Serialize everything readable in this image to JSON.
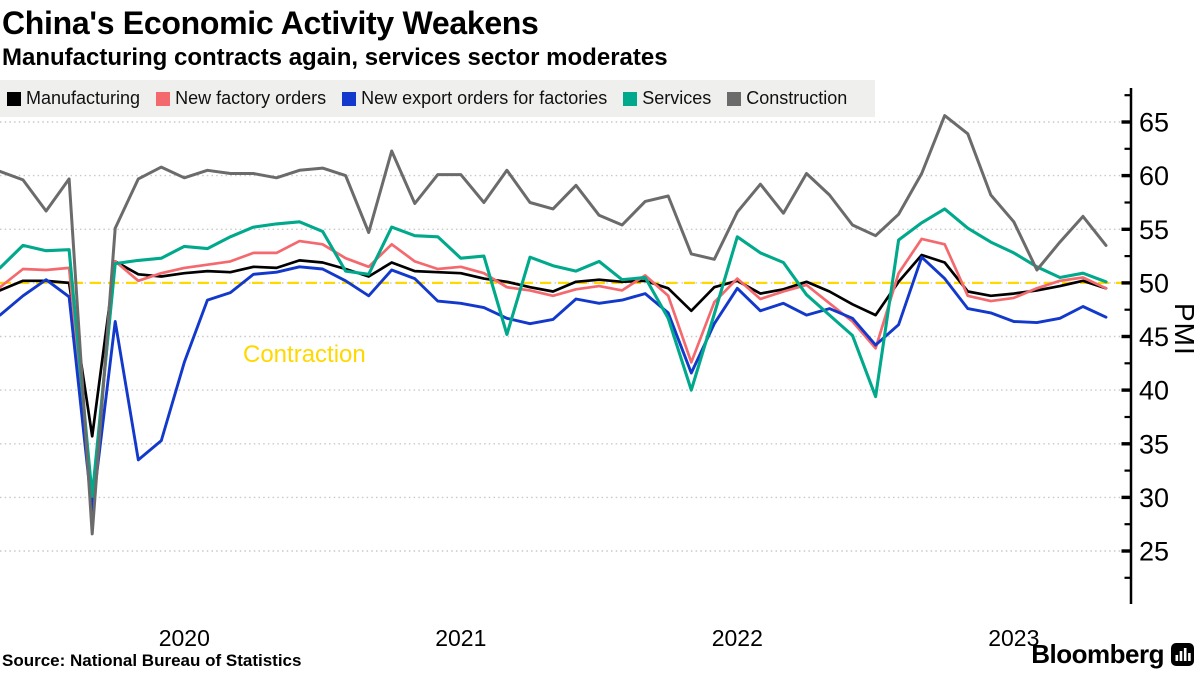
{
  "header": {
    "title": "China's Economic Activity Weakens",
    "subtitle": "Manufacturing contracts again, services sector moderates"
  },
  "chart_data": {
    "type": "line",
    "x_frequency": "monthly",
    "x_start": "Oct 2019",
    "x_end": "Oct 2023",
    "x_year_labels": [
      "2020",
      "2021",
      "2022",
      "2023"
    ],
    "ylabel": "PMI",
    "ylim": [
      22.5,
      67.5
    ],
    "yticks_major": [
      25,
      30,
      35,
      40,
      45,
      50,
      55,
      60,
      65
    ],
    "yticks_minor": [
      22.5,
      27.5,
      32.5,
      37.5,
      42.5,
      47.5,
      52.5,
      57.5,
      62.5,
      67.5
    ],
    "grid": "dotted-horizontal",
    "legend_position": "top",
    "reference_line": {
      "value": 50,
      "style": "dashed",
      "color": "#FFD800",
      "label": "Contraction",
      "label_color": "#FFD800"
    },
    "series": [
      {
        "name": "Manufacturing",
        "color": "#000000",
        "values": [
          49.3,
          50.2,
          50.2,
          50.0,
          35.7,
          52.0,
          50.8,
          50.6,
          50.9,
          51.1,
          51.0,
          51.5,
          51.4,
          52.1,
          51.9,
          51.3,
          50.6,
          51.9,
          51.1,
          51.0,
          50.9,
          50.4,
          50.1,
          49.6,
          49.2,
          50.1,
          50.3,
          50.1,
          50.2,
          49.5,
          47.4,
          49.6,
          50.2,
          49.0,
          49.4,
          50.1,
          49.2,
          48.0,
          47.0,
          50.1,
          52.6,
          51.9,
          49.2,
          48.8,
          49.0,
          49.3,
          49.7,
          50.2,
          49.5
        ]
      },
      {
        "name": "New factory orders",
        "color": "#F4696E",
        "values": [
          49.6,
          51.3,
          51.2,
          51.4,
          29.3,
          52.0,
          50.2,
          50.9,
          51.4,
          51.7,
          52.0,
          52.8,
          52.8,
          53.9,
          53.6,
          52.3,
          51.5,
          53.6,
          52.0,
          51.3,
          51.5,
          50.9,
          49.6,
          49.3,
          48.8,
          49.4,
          49.7,
          49.3,
          50.7,
          48.8,
          42.6,
          48.2,
          50.4,
          48.5,
          49.2,
          49.8,
          48.1,
          46.4,
          43.9,
          50.9,
          54.1,
          53.6,
          48.8,
          48.3,
          48.6,
          49.5,
          50.2,
          50.5,
          49.5
        ]
      },
      {
        "name": "New export orders for factories",
        "color": "#1239CB",
        "values": [
          47.0,
          48.8,
          50.3,
          48.7,
          28.7,
          46.4,
          33.5,
          35.3,
          42.6,
          48.4,
          49.1,
          50.8,
          51.0,
          51.5,
          51.3,
          50.2,
          48.8,
          51.2,
          50.4,
          48.3,
          48.1,
          47.7,
          46.7,
          46.2,
          46.6,
          48.5,
          48.1,
          48.4,
          49.0,
          47.2,
          41.6,
          46.2,
          49.5,
          47.4,
          48.1,
          47.0,
          47.6,
          46.7,
          44.2,
          46.1,
          52.4,
          50.4,
          47.6,
          47.2,
          46.4,
          46.3,
          46.7,
          47.8,
          46.8
        ]
      },
      {
        "name": "Services",
        "color": "#00A98B",
        "values": [
          51.4,
          53.5,
          53.0,
          53.1,
          30.1,
          51.8,
          52.1,
          52.3,
          53.4,
          53.2,
          54.3,
          55.2,
          55.5,
          55.7,
          54.8,
          51.1,
          50.8,
          55.2,
          54.4,
          54.3,
          52.3,
          52.5,
          45.2,
          52.4,
          51.6,
          51.1,
          52.0,
          50.3,
          50.5,
          46.7,
          40.0,
          47.1,
          54.3,
          52.8,
          51.9,
          48.9,
          47.0,
          45.1,
          39.4,
          54.0,
          55.6,
          56.9,
          55.1,
          53.8,
          52.8,
          51.5,
          50.5,
          50.9,
          50.1
        ]
      },
      {
        "name": "Construction",
        "color": "#6B6B6B",
        "values": [
          60.4,
          59.6,
          56.7,
          59.7,
          26.6,
          55.1,
          59.7,
          60.8,
          59.8,
          60.5,
          60.2,
          60.2,
          59.8,
          60.5,
          60.7,
          60.0,
          54.7,
          62.3,
          57.4,
          60.1,
          60.1,
          57.5,
          60.5,
          57.5,
          56.9,
          59.1,
          56.3,
          55.4,
          57.6,
          58.1,
          52.7,
          52.2,
          56.6,
          59.2,
          56.5,
          60.2,
          58.2,
          55.4,
          54.4,
          56.4,
          60.2,
          65.6,
          63.9,
          58.2,
          55.7,
          51.2,
          53.8,
          56.2,
          53.5
        ]
      }
    ]
  },
  "footer": {
    "source": "Source: National Bureau of Statistics",
    "brand": "Bloomberg"
  }
}
